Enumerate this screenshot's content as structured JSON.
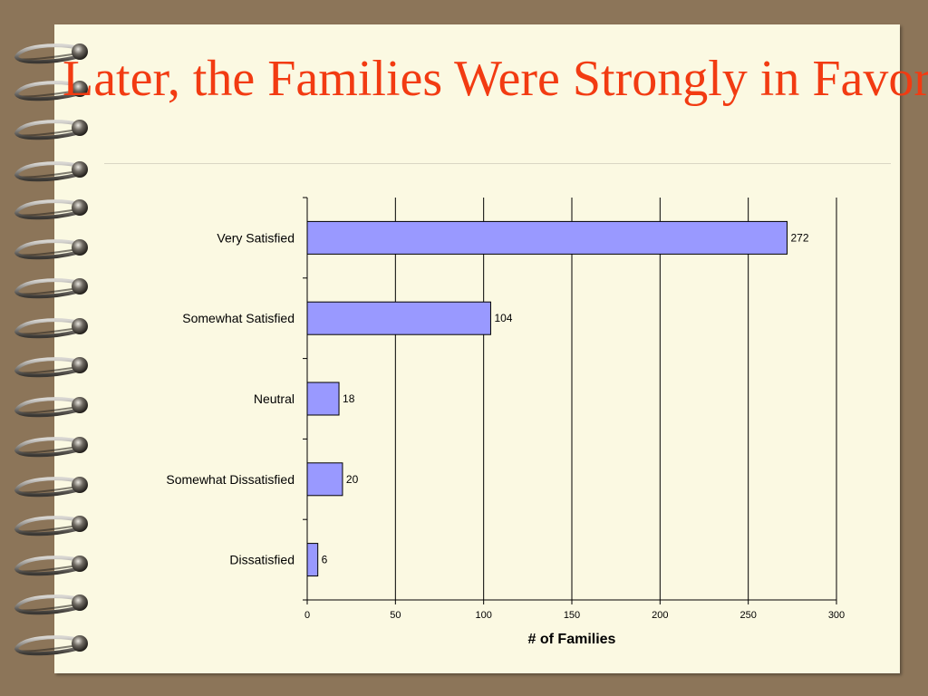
{
  "slide": {
    "title": "Later, the Families Were Strongly in Favor"
  },
  "colors": {
    "background": "#8c7559",
    "page": "#fbf9e2",
    "title": "#f23b12",
    "bar_fill": "#9999ff",
    "bar_stroke": "#000000",
    "grid": "#000000"
  },
  "chart_data": {
    "type": "bar",
    "orientation": "horizontal",
    "categories": [
      "Very Satisfied",
      "Somewhat Satisfied",
      "Neutral",
      "Somewhat Dissatisfied",
      "Dissatisfied"
    ],
    "values": [
      272,
      104,
      18,
      20,
      6
    ],
    "data_labels": [
      "272",
      "104",
      "18",
      "20",
      "6"
    ],
    "xlabel": "# of Families",
    "ylabel": "",
    "xlim": [
      0,
      300
    ],
    "xticks": [
      0,
      50,
      100,
      150,
      200,
      250,
      300
    ],
    "grid": "vertical",
    "legend": "none"
  }
}
